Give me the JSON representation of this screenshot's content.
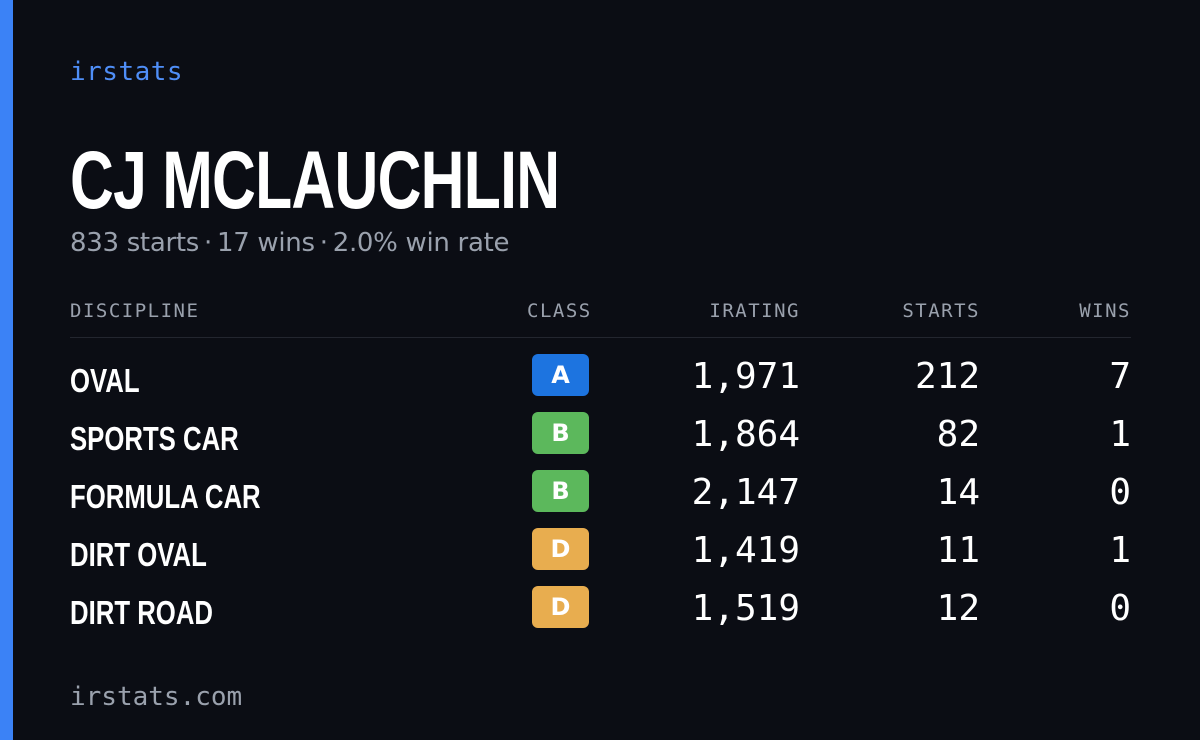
{
  "brand": "irstats",
  "driver": {
    "name": "CJ MCLAUCHLIN",
    "starts": "833 starts",
    "wins": "17 wins",
    "win_rate": "2.0% win rate",
    "separator": "·"
  },
  "table": {
    "headers": {
      "discipline": "DISCIPLINE",
      "class": "CLASS",
      "irating": "IRATING",
      "starts": "STARTS",
      "wins": "WINS"
    },
    "rows": [
      {
        "discipline": "OVAL",
        "class": "A",
        "class_color": "#1d74e0",
        "irating": "1,971",
        "starts": "212",
        "wins": "7"
      },
      {
        "discipline": "SPORTS CAR",
        "class": "B",
        "class_color": "#5cb85c",
        "irating": "1,864",
        "starts": "82",
        "wins": "1"
      },
      {
        "discipline": "FORMULA CAR",
        "class": "B",
        "class_color": "#5cb85c",
        "irating": "2,147",
        "starts": "14",
        "wins": "0"
      },
      {
        "discipline": "DIRT OVAL",
        "class": "D",
        "class_color": "#e8ad4f",
        "irating": "1,419",
        "starts": "11",
        "wins": "1"
      },
      {
        "discipline": "DIRT ROAD",
        "class": "D",
        "class_color": "#e8ad4f",
        "irating": "1,519",
        "starts": "12",
        "wins": "0"
      }
    ]
  },
  "footer": "irstats.com",
  "colors": {
    "accent": "#3b82f6",
    "background": "#0b0d14"
  }
}
